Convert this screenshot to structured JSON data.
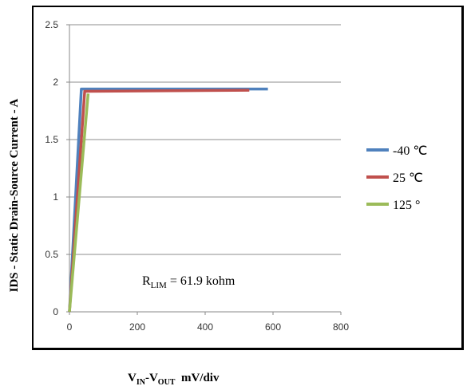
{
  "chart_data": {
    "type": "line",
    "ylabel": "IDS - Static Drain-Source Current - A",
    "xlabel_parts": {
      "main1": "V",
      "sub1": "IN",
      "dash": "-V",
      "sub2": "OUT",
      "tail": "  mV/div"
    },
    "annotation": {
      "main": "R",
      "sub": "LIM",
      "tail": " = 61.9 kohm"
    },
    "xlim": [
      0,
      800
    ],
    "ylim": [
      0,
      2.5
    ],
    "x_ticks": [
      0,
      200,
      400,
      600,
      800
    ],
    "y_ticks": [
      0,
      0.5,
      1,
      1.5,
      2,
      2.5
    ],
    "x_tick_labels": [
      "0",
      "200",
      "400",
      "600",
      "800"
    ],
    "y_tick_labels": [
      "0",
      "0.5",
      "1",
      "1.5",
      "2",
      "2.5"
    ],
    "grid": "horizontal",
    "legend_position": "right",
    "series": [
      {
        "name": "-40 ℃",
        "color": "#4f81bd",
        "points": [
          [
            0,
            0
          ],
          [
            35,
            1.94
          ],
          [
            585,
            1.94
          ]
        ]
      },
      {
        "name": "25 ℃",
        "color": "#c0504d",
        "points": [
          [
            0,
            0
          ],
          [
            45,
            1.92
          ],
          [
            530,
            1.93
          ]
        ]
      },
      {
        "name": "125 °",
        "color": "#9bbb59",
        "points": [
          [
            0,
            0
          ],
          [
            55,
            1.9
          ]
        ]
      }
    ]
  }
}
